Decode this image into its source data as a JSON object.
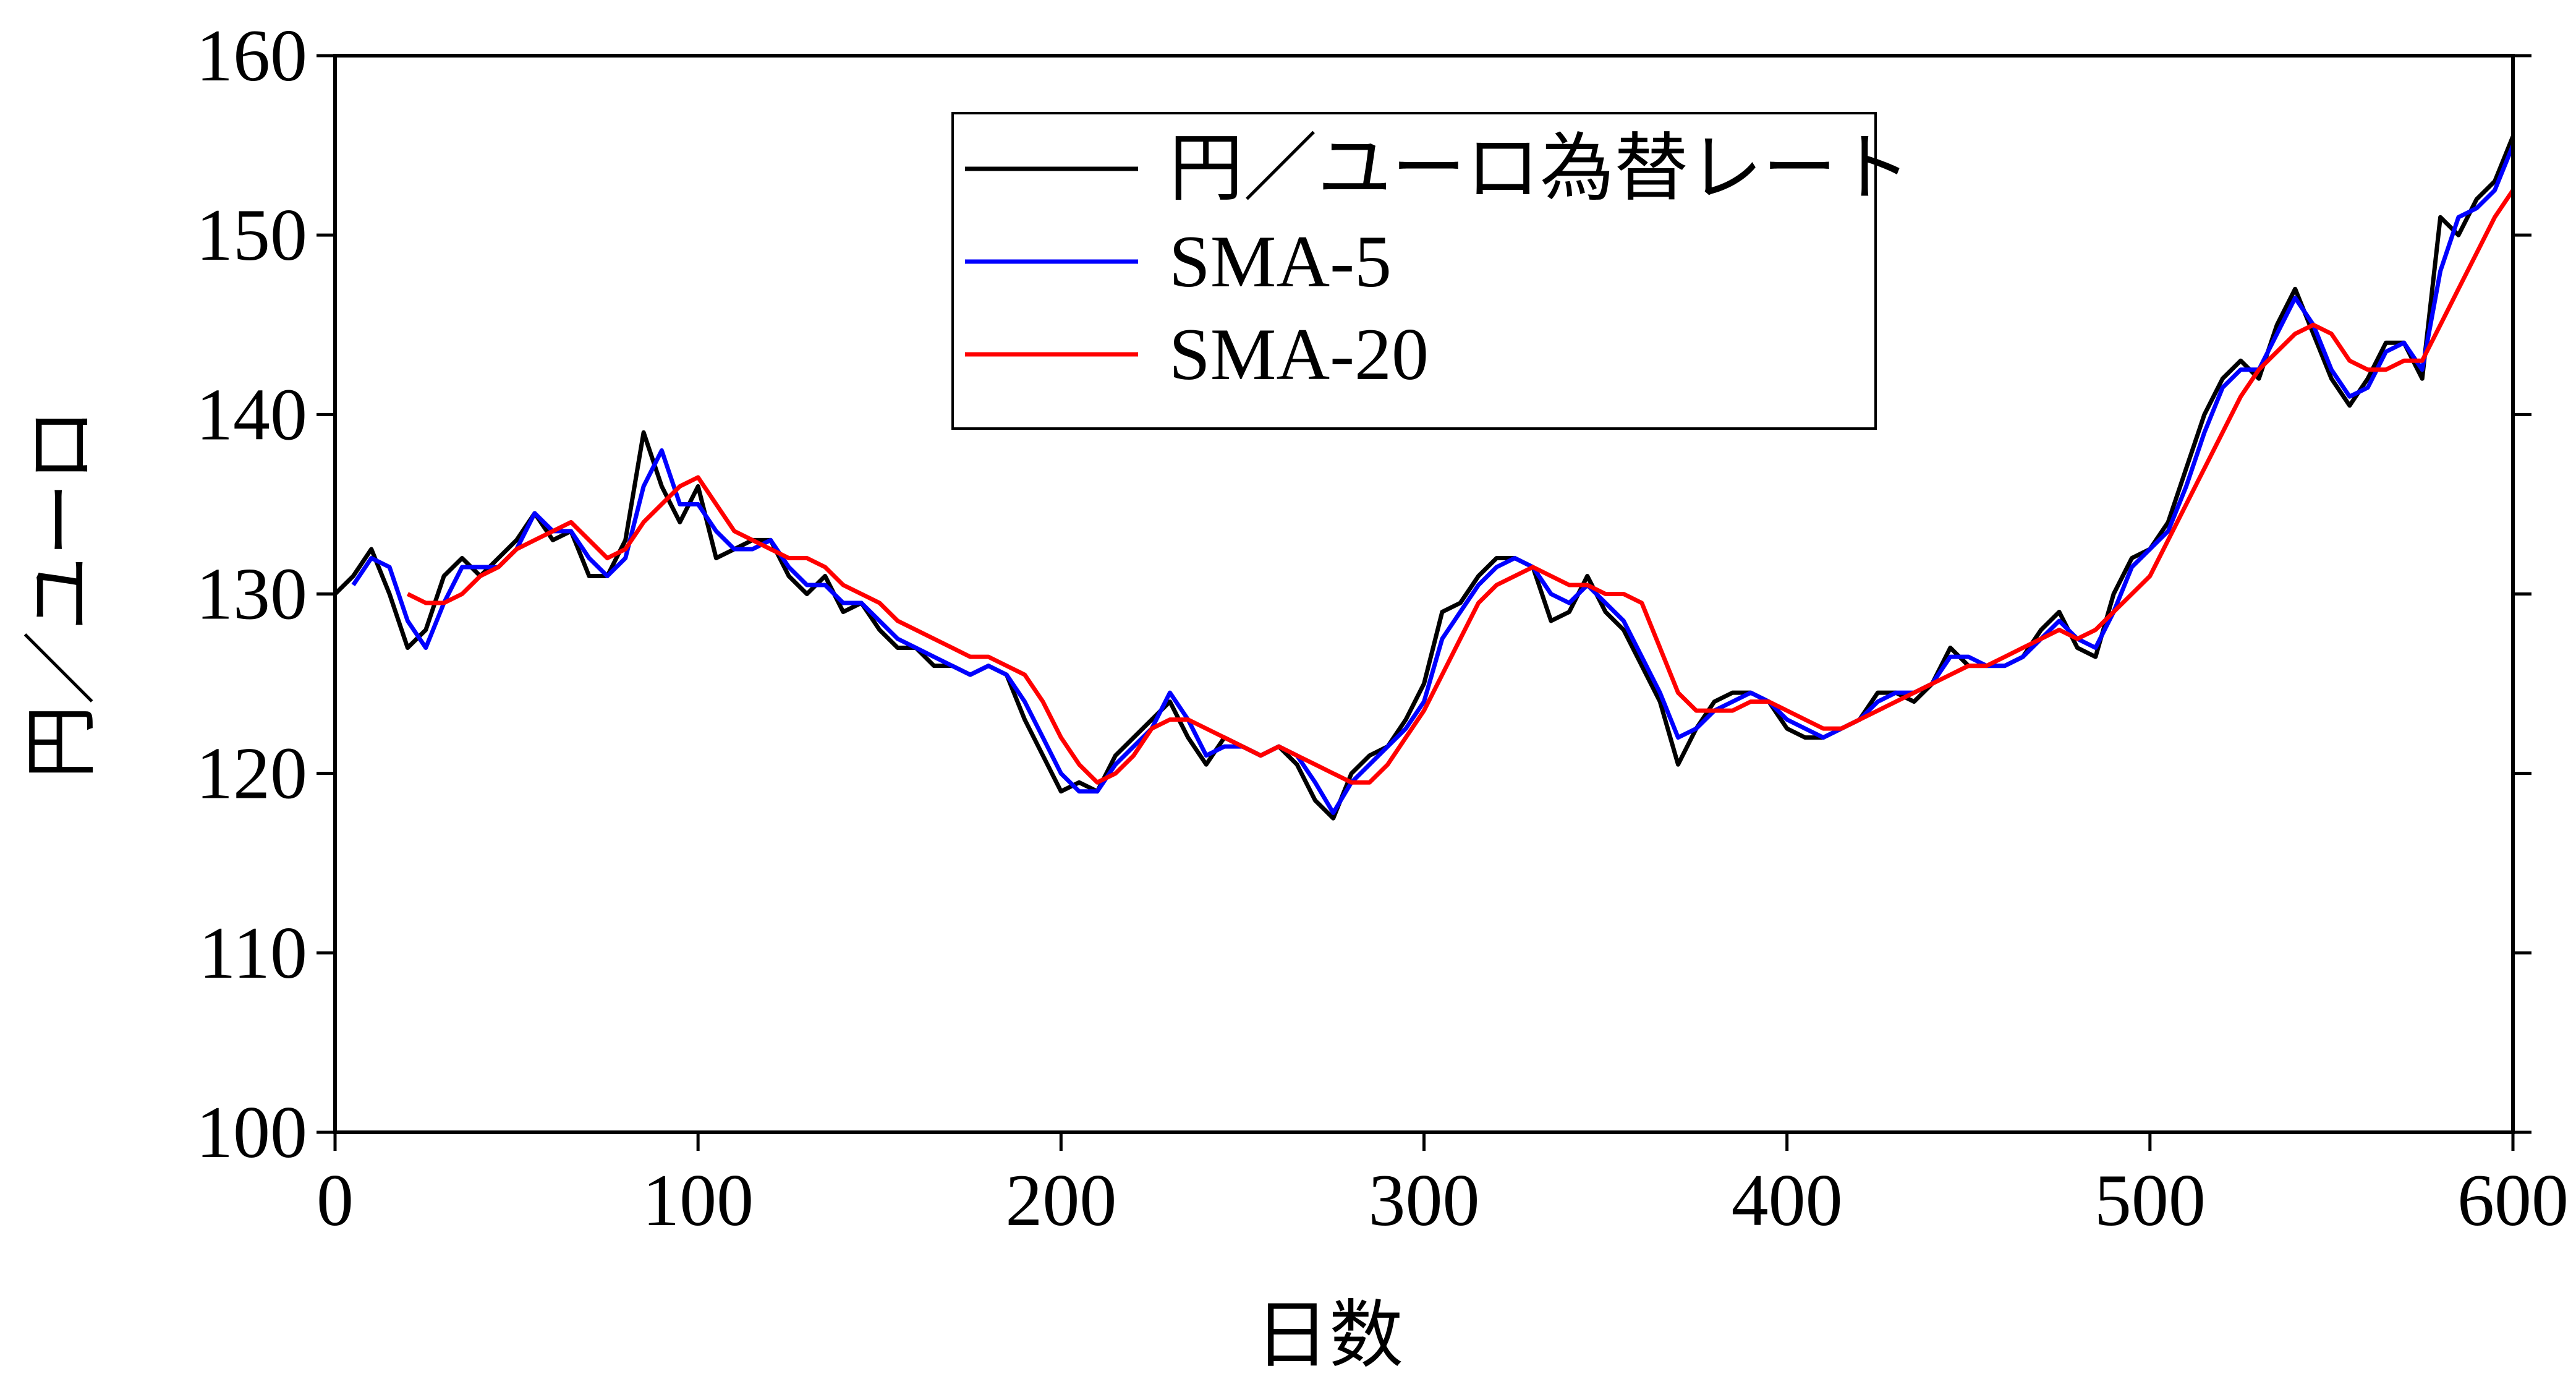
{
  "chart_data": {
    "type": "line",
    "xlabel": "日数",
    "ylabel": "円／ユーロ",
    "xlim": [
      0,
      600
    ],
    "xticks": [
      0,
      100,
      200,
      300,
      400,
      500,
      600
    ],
    "ylim": [
      100,
      160
    ],
    "yticks": [
      100,
      110,
      120,
      130,
      140,
      150,
      160
    ],
    "legend": "upper center",
    "x": [
      0,
      5,
      10,
      15,
      20,
      25,
      30,
      35,
      40,
      45,
      50,
      55,
      60,
      65,
      70,
      75,
      80,
      85,
      90,
      95,
      100,
      105,
      110,
      115,
      120,
      125,
      130,
      135,
      140,
      145,
      150,
      155,
      160,
      165,
      170,
      175,
      180,
      185,
      190,
      195,
      200,
      205,
      210,
      215,
      220,
      225,
      230,
      235,
      240,
      245,
      250,
      255,
      260,
      265,
      270,
      275,
      280,
      285,
      290,
      295,
      300,
      305,
      310,
      315,
      320,
      325,
      330,
      335,
      340,
      345,
      350,
      355,
      360,
      365,
      370,
      375,
      380,
      385,
      390,
      395,
      400,
      405,
      410,
      415,
      420,
      425,
      430,
      435,
      440,
      445,
      450,
      455,
      460,
      465,
      470,
      475,
      480,
      485,
      490,
      495,
      500,
      505,
      510,
      515,
      520,
      525,
      530,
      535,
      540,
      545,
      550,
      555,
      560,
      565,
      570,
      575,
      580,
      585,
      590,
      595,
      600
    ],
    "series": [
      {
        "name": "円／ユーロ為替レート",
        "color": "#000000",
        "values": [
          130,
          131,
          132.5,
          130,
          127,
          128,
          131,
          132,
          131,
          132,
          133,
          134.5,
          133,
          133.5,
          131,
          131,
          133,
          139,
          136,
          134,
          136,
          132,
          132.5,
          133,
          133,
          131,
          130,
          131,
          129,
          129.5,
          128,
          127,
          127,
          126,
          126,
          125.5,
          126,
          125.5,
          123,
          121,
          119,
          119.5,
          119,
          121,
          122,
          123,
          124,
          122,
          120.5,
          122,
          121.5,
          121,
          121.5,
          120.5,
          118.5,
          117.5,
          120,
          121,
          121.5,
          123,
          125,
          129,
          129.5,
          131,
          132,
          132,
          131.5,
          128.5,
          129,
          131,
          129,
          128,
          126,
          124,
          120.5,
          122.5,
          124,
          124.5,
          124.5,
          124,
          122.5,
          122,
          122,
          122.5,
          123,
          124.5,
          124.5,
          124,
          125,
          127,
          126,
          126,
          126,
          126.5,
          128,
          129,
          127,
          126.5,
          130,
          132,
          132.5,
          134,
          137,
          140,
          142,
          143,
          142,
          145,
          147,
          144.5,
          142,
          140.5,
          142,
          144,
          144,
          142,
          151,
          150,
          152,
          153,
          155.5
        ]
      },
      {
        "name": "SMA-5",
        "color": "#0000ff",
        "values": [
          null,
          130.5,
          132,
          131.5,
          128.5,
          127,
          129.5,
          131.5,
          131.5,
          131.5,
          132.5,
          134.5,
          133.5,
          133.5,
          132,
          131,
          132,
          136,
          138,
          135,
          135,
          133.5,
          132.5,
          132.5,
          133,
          131.5,
          130.5,
          130.5,
          129.5,
          129.5,
          128.5,
          127.5,
          127,
          126.5,
          126,
          125.5,
          126,
          125.5,
          124,
          122,
          120,
          119,
          119,
          120.5,
          121.5,
          122.5,
          124.5,
          123,
          121,
          121.5,
          121.5,
          121,
          121.5,
          121,
          119.5,
          117.8,
          119.5,
          120.5,
          121.5,
          122.5,
          124,
          127.5,
          129,
          130.5,
          131.5,
          132,
          131.5,
          130,
          129.5,
          130.5,
          129.5,
          128.5,
          126.5,
          124.5,
          122,
          122.5,
          123.5,
          124,
          124.5,
          124,
          123,
          122.5,
          122,
          122.5,
          123,
          124,
          124.5,
          124.5,
          125,
          126.5,
          126.5,
          126,
          126,
          126.5,
          127.5,
          128.5,
          127.5,
          127,
          129,
          131.5,
          132.5,
          133.5,
          136,
          139,
          141.5,
          142.5,
          142.5,
          144.5,
          146.5,
          145,
          142.5,
          141,
          141.5,
          143.5,
          144,
          142.5,
          148,
          151,
          151.5,
          152.5,
          155
        ]
      },
      {
        "name": "SMA-20",
        "color": "#ff0000",
        "values": [
          null,
          null,
          null,
          null,
          130,
          129.5,
          129.5,
          130,
          131,
          131.5,
          132.5,
          133,
          133.5,
          134,
          133,
          132,
          132.5,
          134,
          135,
          136,
          136.5,
          135,
          133.5,
          133,
          132.5,
          132,
          132,
          131.5,
          130.5,
          130,
          129.5,
          128.5,
          128,
          127.5,
          127,
          126.5,
          126.5,
          126,
          125.5,
          124,
          122,
          120.5,
          119.5,
          120,
          121,
          122.5,
          123,
          123,
          122.5,
          122,
          121.5,
          121,
          121.5,
          121,
          120.5,
          120,
          119.5,
          119.5,
          120.5,
          122,
          123.5,
          125.5,
          127.5,
          129.5,
          130.5,
          131,
          131.5,
          131,
          130.5,
          130.5,
          130,
          130,
          129.5,
          127,
          124.5,
          123.5,
          123.5,
          123.5,
          124,
          124,
          123.5,
          123,
          122.5,
          122.5,
          123,
          123.5,
          124,
          124.5,
          125,
          125.5,
          126,
          126,
          126.5,
          127,
          127.5,
          128,
          127.5,
          128,
          129,
          130,
          131,
          133,
          135,
          137,
          139,
          141,
          142.5,
          143.5,
          144.5,
          145,
          144.5,
          143,
          142.5,
          142.5,
          143,
          143,
          145,
          147,
          149,
          151,
          152.5
        ]
      }
    ]
  }
}
